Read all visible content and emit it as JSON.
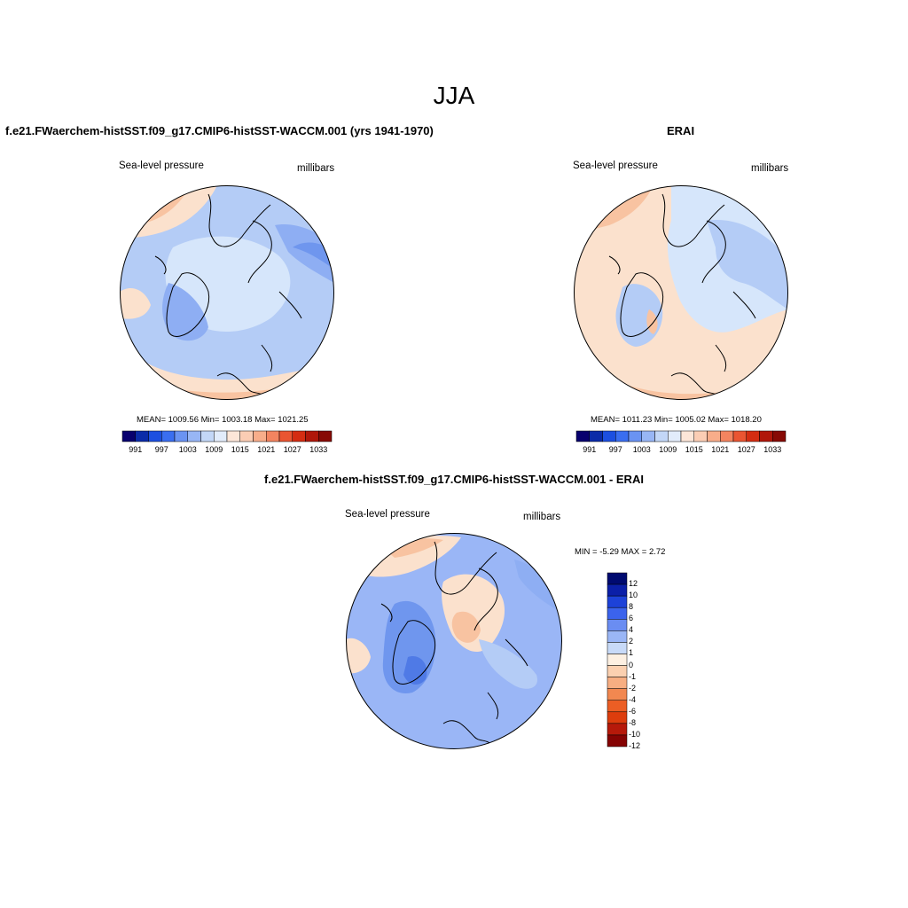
{
  "figure": {
    "season": "JJA"
  },
  "left_panel": {
    "title": "f.e21.FWaerchem-histSST.f09_g17.CMIP6-histSST-WACCM.001 (yrs 1941-1970)",
    "variable": "Sea-level pressure",
    "units": "millibars",
    "stats": "MEAN= 1009.56  Min= 1003.18  Max= 1021.25"
  },
  "right_panel": {
    "title": "ERAI",
    "variable": "Sea-level pressure",
    "units": "millibars",
    "stats": "MEAN= 1011.23  Min= 1005.02  Max= 1018.20"
  },
  "diff_panel": {
    "title": "f.e21.FWaerchem-histSST.f09_g17.CMIP6-histSST-WACCM.001 - ERAI",
    "variable": "Sea-level pressure",
    "units": "millibars",
    "stats": "MIN =  -5.29 MAX =   2.72"
  },
  "slp_colorbar": {
    "colors": [
      "#08006e",
      "#0b2ba8",
      "#1c4fe0",
      "#3a6ef0",
      "#6a93f2",
      "#98b6f5",
      "#c3d7f7",
      "#e2ecfb",
      "#fde6d8",
      "#fbcdb4",
      "#f8ad8a",
      "#f38460",
      "#ea5532",
      "#d42d12",
      "#b0170a",
      "#870a05"
    ],
    "labels": [
      "991",
      "997",
      "1003",
      "1009",
      "1015",
      "1021",
      "1027",
      "1033"
    ]
  },
  "diff_colorbar": {
    "colors": [
      "#000a70",
      "#0b1fa8",
      "#1d42d8",
      "#3b63ec",
      "#6a8df2",
      "#9ab6f6",
      "#c8daf8",
      "#fdf0e2",
      "#fbd0b0",
      "#f7ae82",
      "#f28850",
      "#ec5e24",
      "#dd3d0d",
      "#b6190a",
      "#850303"
    ],
    "labels": [
      "12",
      "10",
      "8",
      "6",
      "4",
      "2",
      "1",
      "0",
      "-1",
      "-2",
      "-4",
      "-6",
      "-8",
      "-10",
      "-12"
    ]
  },
  "colors": {
    "pale_blue": "#d6e6fb",
    "light_blue": "#b4ccf6",
    "mid_blue": "#8eaef3",
    "blue": "#6f96ee",
    "deep_blue": "#4f7ae6",
    "pale_orange": "#fbe1cd",
    "light_orange": "#f8c3a1",
    "orange": "#f3a27a",
    "red_orange": "#ec7a52"
  }
}
